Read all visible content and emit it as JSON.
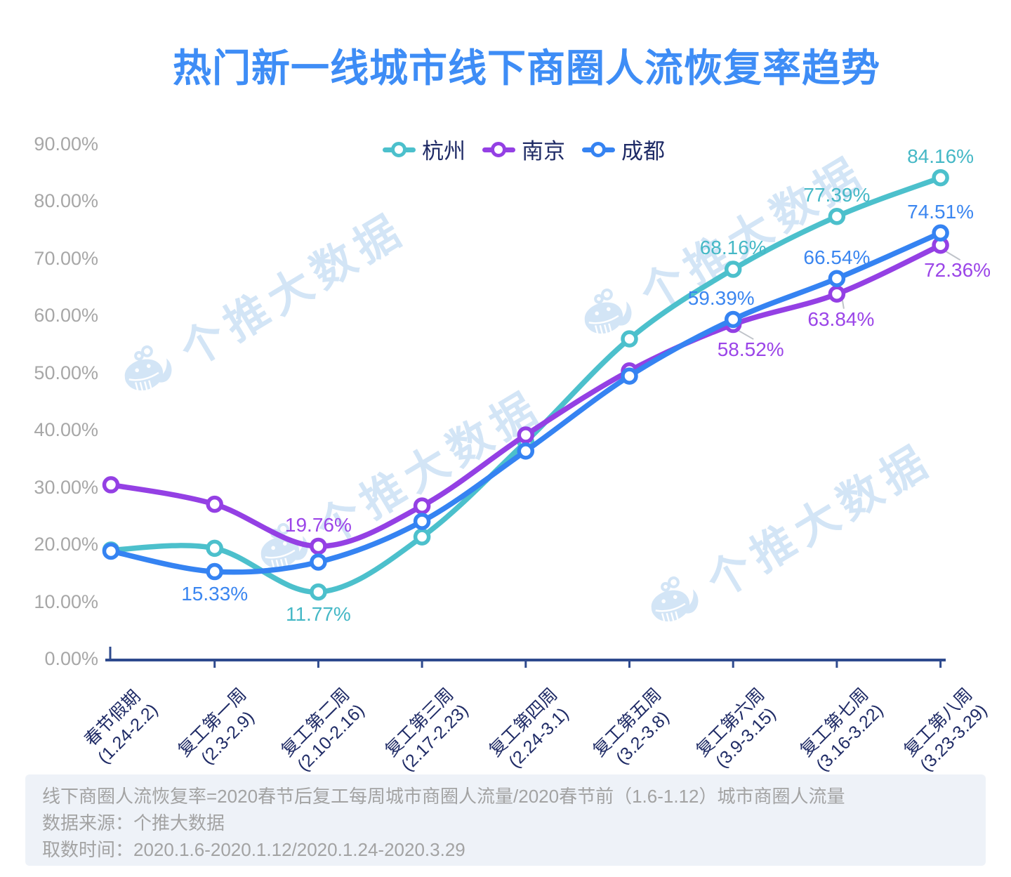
{
  "title": "热门新一线城市线下商圈人流恢复率趋势",
  "watermark": {
    "text": "个推大数据",
    "icon": "whale-mascot-icon",
    "color": "#d3e5f6"
  },
  "footer": {
    "lines": [
      "线下商圈人流恢复率=2020春节后复工每周城市商圈人流量/2020春节前（1.6-1.12）城市商圈人流量",
      "数据来源：个推大数据",
      "取数时间：2020.1.6-2020.1.12/2020.1.24-2020.3.29"
    ]
  },
  "chart_data": {
    "type": "line",
    "smooth": true,
    "title": "热门新一线城市线下商圈人流恢复率趋势",
    "x_categories": [
      [
        "春节假期",
        "(1.24-2.2)"
      ],
      [
        "复工第一周",
        "(2.3-2.9)"
      ],
      [
        "复工第二周",
        "(2.10-2.16)"
      ],
      [
        "复工第三周",
        "(2.17-2.23)"
      ],
      [
        "复工第四周",
        "(2.24-3.1)"
      ],
      [
        "复工第五周",
        "(3.2-3.8)"
      ],
      [
        "复工第六周",
        "(3.9-3.15)"
      ],
      [
        "复工第七周",
        "(3.16-3.22)"
      ],
      [
        "复工第八周",
        "(3.23-3.29)"
      ]
    ],
    "y_axis": {
      "min": 0,
      "max": 90,
      "step": 10,
      "format": "percent-2dp"
    },
    "grid": false,
    "legend_position": "top-center",
    "series": [
      {
        "id": "hangzhou",
        "name": "杭州",
        "color": "#4cc0cc",
        "label_color": "#45b8c6",
        "values": [
          19.1,
          19.4,
          11.77,
          21.4,
          38.0,
          56.0,
          68.16,
          77.39,
          84.16
        ],
        "point_labels": [
          {
            "index": 2,
            "text": "11.77%",
            "pos": "below"
          },
          {
            "index": 6,
            "text": "68.16%",
            "pos": "above"
          },
          {
            "index": 7,
            "text": "77.39%",
            "pos": "above"
          },
          {
            "index": 8,
            "text": "84.16%",
            "pos": "above"
          }
        ]
      },
      {
        "id": "nanjing",
        "name": "南京",
        "color": "#9440e4",
        "label_color": "#9b45e8",
        "values": [
          30.5,
          27.1,
          19.76,
          26.8,
          39.2,
          50.4,
          58.52,
          63.84,
          72.36
        ],
        "point_labels": [
          {
            "index": 2,
            "text": "19.76%",
            "pos": "above"
          },
          {
            "index": 6,
            "text": "58.52%",
            "pos": "below",
            "dx": 25,
            "leader": true
          },
          {
            "index": 7,
            "text": "63.84%",
            "pos": "below",
            "dx": 6,
            "leader": true
          },
          {
            "index": 8,
            "text": "72.36%",
            "pos": "below",
            "dx": 24,
            "leader": true
          }
        ]
      },
      {
        "id": "chengdu",
        "name": "成都",
        "color": "#3583f2",
        "label_color": "#3b86f0",
        "values": [
          18.9,
          15.33,
          17.0,
          24.1,
          36.4,
          49.5,
          59.39,
          66.54,
          74.51
        ],
        "point_labels": [
          {
            "index": 1,
            "text": "15.33%",
            "pos": "below"
          },
          {
            "index": 6,
            "text": "59.39%",
            "pos": "above",
            "dx": -17
          },
          {
            "index": 7,
            "text": "66.54%",
            "pos": "above"
          },
          {
            "index": 8,
            "text": "74.51%",
            "pos": "above"
          }
        ]
      }
    ]
  }
}
